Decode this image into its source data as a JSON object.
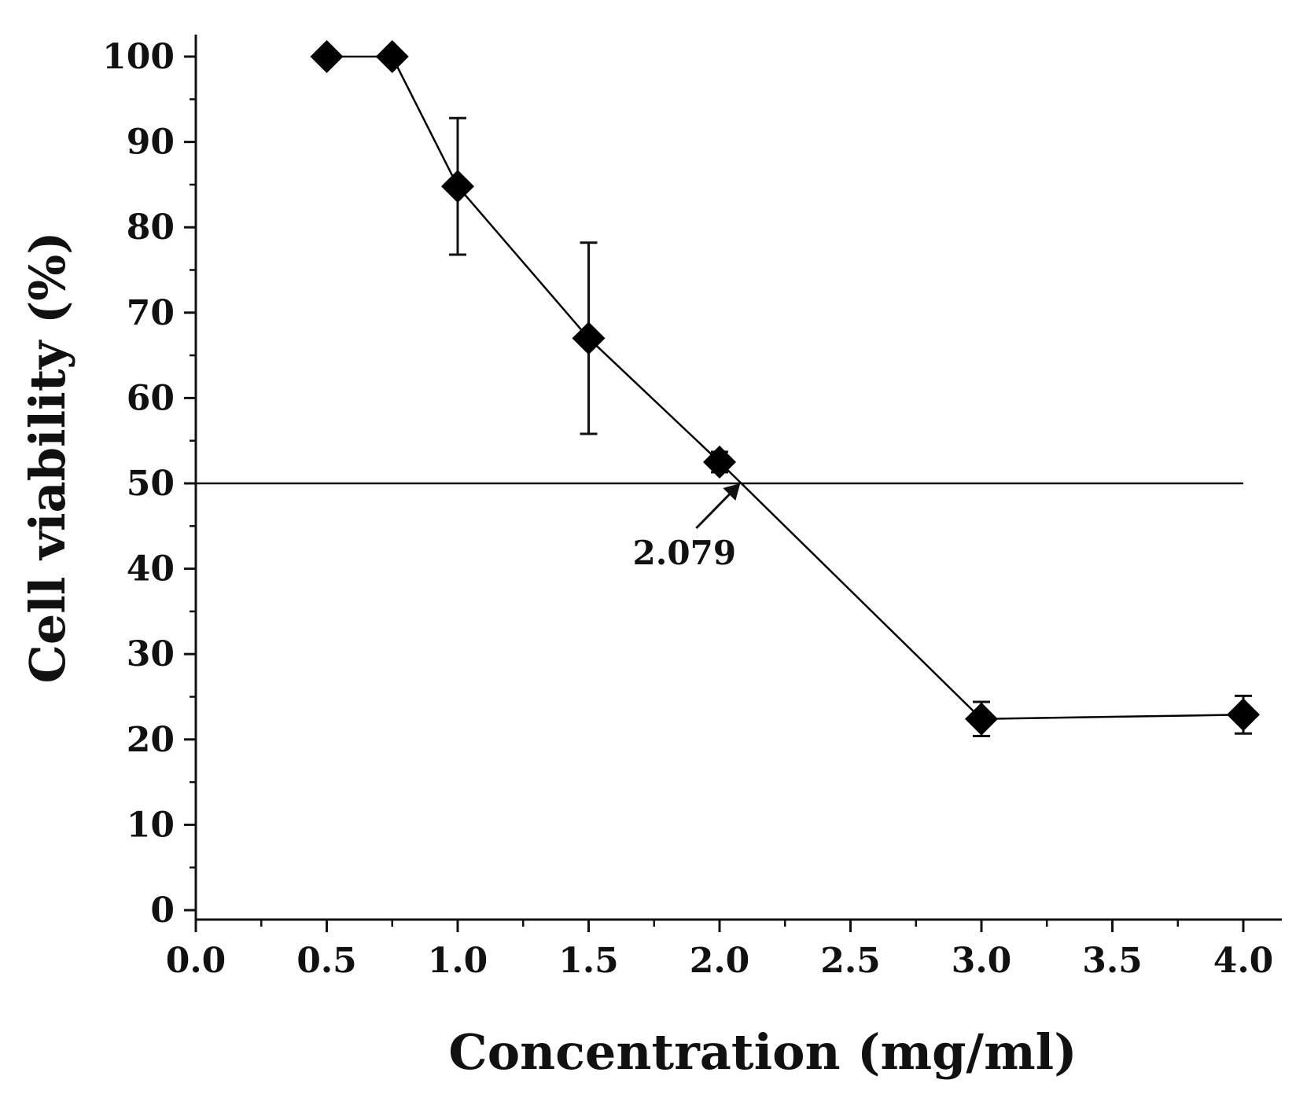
{
  "chart_data": {
    "type": "line",
    "title": "",
    "xlabel": "Concentration (mg/ml)",
    "ylabel": "Cell viability (%)",
    "xlim": [
      0,
      4.15
    ],
    "ylim": [
      0,
      103
    ],
    "xticks": [
      0.0,
      0.5,
      1.0,
      1.5,
      2.0,
      2.5,
      3.0,
      3.5,
      4.0
    ],
    "xtick_labels": [
      "0.0",
      "0.5",
      "1.0",
      "1.5",
      "2.0",
      "2.5",
      "3.0",
      "3.5",
      "4.0"
    ],
    "yticks": [
      0,
      10,
      20,
      30,
      40,
      50,
      60,
      70,
      80,
      90,
      100
    ],
    "ytick_labels": [
      "0",
      "10",
      "20",
      "30",
      "40",
      "50",
      "60",
      "70",
      "80",
      "90",
      "100"
    ],
    "grid": false,
    "series": [
      {
        "name": "Cell viability",
        "marker": "diamond",
        "color": "#000000",
        "x": [
          0.5,
          0.75,
          1.0,
          1.5,
          2.0,
          3.0,
          4.0
        ],
        "y": [
          100,
          100,
          84.8,
          67.0,
          52.5,
          22.4,
          22.9
        ],
        "error": [
          0,
          0,
          8.0,
          11.2,
          1.2,
          2.0,
          2.2
        ]
      }
    ],
    "reference_line": {
      "y": 50,
      "x_range": [
        0,
        4.0
      ]
    },
    "annotations": [
      {
        "text": "2.079",
        "arrow_to": {
          "x": 2.079,
          "y": 50
        }
      }
    ]
  }
}
